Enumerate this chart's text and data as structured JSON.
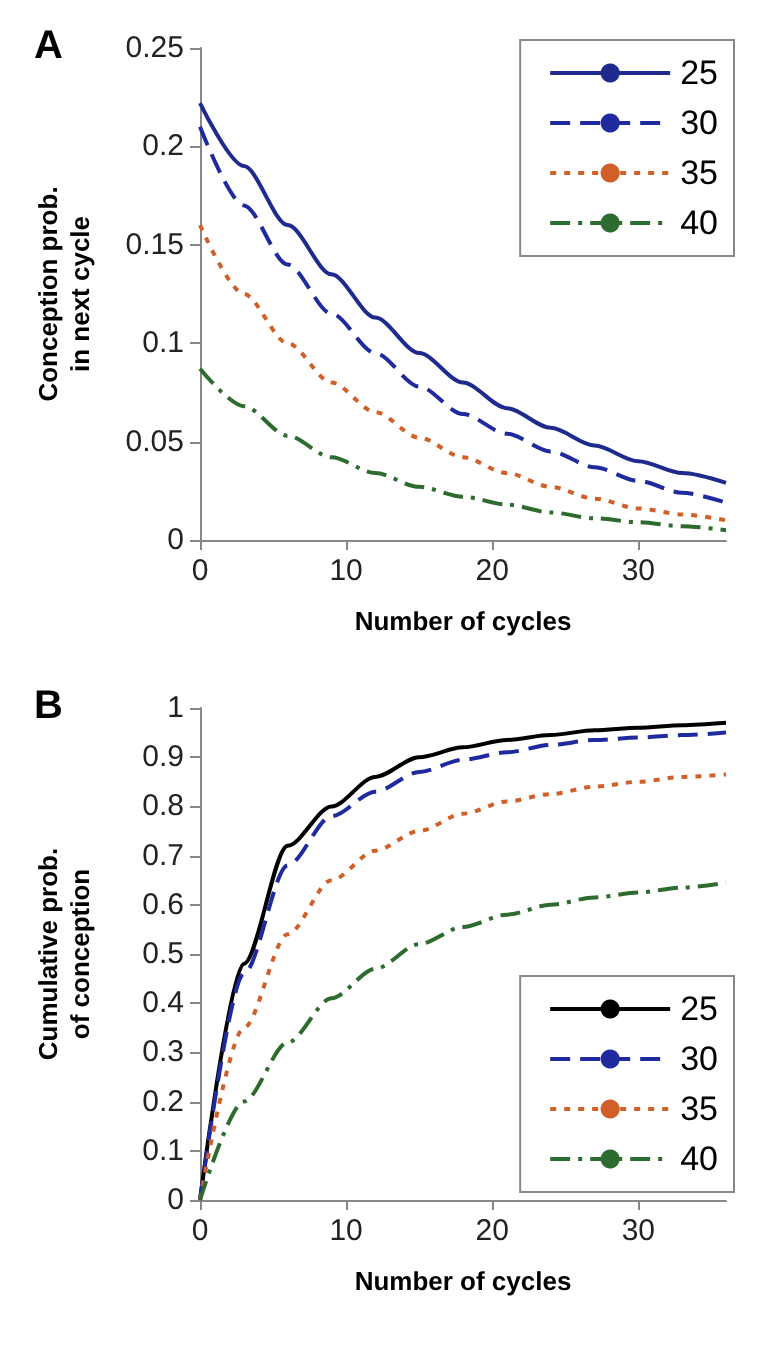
{
  "chart_data": [
    {
      "type": "line",
      "title": "A",
      "xlabel": "Number of cycles",
      "ylabel": "Conception prob.\nin next cycle",
      "x": [
        0,
        3,
        6,
        9,
        12,
        15,
        18,
        21,
        24,
        27,
        30,
        33,
        36
      ],
      "xlim": [
        0,
        36
      ],
      "xticks": [
        0,
        10,
        20,
        30
      ],
      "ylim": [
        0,
        0.25
      ],
      "yticks": [
        0,
        0.05,
        0.1,
        0.15,
        0.2,
        0.25
      ],
      "grid": false,
      "legend": "top right",
      "marker": "none",
      "series": [
        {
          "name": "25",
          "color": "#1f2a8f",
          "line_style": "solid",
          "values": [
            0.222,
            0.19,
            0.16,
            0.135,
            0.113,
            0.095,
            0.08,
            0.067,
            0.057,
            0.048,
            0.04,
            0.034,
            0.029
          ]
        },
        {
          "name": "30",
          "color": "#1f2a9f",
          "line_style": "dashed",
          "values": [
            0.21,
            0.17,
            0.14,
            0.115,
            0.095,
            0.078,
            0.064,
            0.054,
            0.045,
            0.037,
            0.03,
            0.024,
            0.019
          ]
        },
        {
          "name": "35",
          "color": "#d0602a",
          "line_style": "dotted",
          "values": [
            0.16,
            0.125,
            0.1,
            0.08,
            0.065,
            0.052,
            0.042,
            0.034,
            0.027,
            0.021,
            0.016,
            0.013,
            0.01
          ]
        },
        {
          "name": "40",
          "color": "#2e6b2e",
          "line_style": "dashdot",
          "values": [
            0.087,
            0.068,
            0.053,
            0.042,
            0.034,
            0.027,
            0.022,
            0.018,
            0.014,
            0.011,
            0.009,
            0.007,
            0.005
          ]
        }
      ]
    },
    {
      "type": "line",
      "title": "B",
      "xlabel": "Number of cycles",
      "ylabel": "Cumulative prob.\nof conception",
      "x": [
        0,
        3,
        6,
        9,
        12,
        15,
        18,
        21,
        24,
        27,
        30,
        33,
        36
      ],
      "xlim": [
        0,
        36
      ],
      "xticks": [
        0,
        10,
        20,
        30
      ],
      "ylim": [
        0,
        1
      ],
      "yticks": [
        0,
        0.1,
        0.2,
        0.3,
        0.4,
        0.5,
        0.6,
        0.7,
        0.8,
        0.9,
        1
      ],
      "grid": false,
      "legend": "bottom right",
      "marker": "none",
      "series": [
        {
          "name": "25",
          "color": "#000000",
          "line_style": "solid",
          "values": [
            0,
            0.48,
            0.72,
            0.8,
            0.86,
            0.9,
            0.92,
            0.935,
            0.945,
            0.955,
            0.96,
            0.965,
            0.97
          ]
        },
        {
          "name": "30",
          "color": "#1f2a9f",
          "line_style": "dashed",
          "values": [
            0,
            0.46,
            0.68,
            0.78,
            0.83,
            0.87,
            0.895,
            0.91,
            0.925,
            0.935,
            0.94,
            0.945,
            0.95
          ]
        },
        {
          "name": "35",
          "color": "#d0602a",
          "line_style": "dotted",
          "values": [
            0,
            0.35,
            0.54,
            0.65,
            0.71,
            0.75,
            0.785,
            0.81,
            0.825,
            0.84,
            0.85,
            0.86,
            0.865
          ]
        },
        {
          "name": "40",
          "color": "#2e6b2e",
          "line_style": "dashdot",
          "values": [
            0,
            0.2,
            0.32,
            0.41,
            0.47,
            0.52,
            0.555,
            0.58,
            0.6,
            0.615,
            0.625,
            0.635,
            0.645
          ]
        }
      ]
    }
  ]
}
